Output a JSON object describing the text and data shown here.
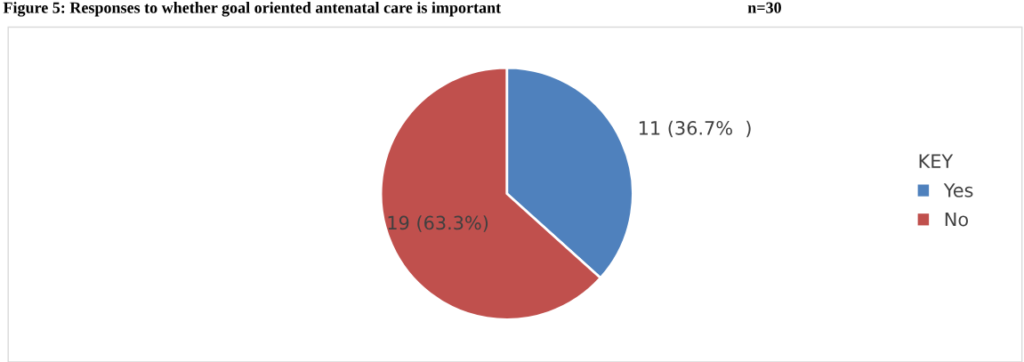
{
  "chart_data": {
    "type": "pie",
    "title": "Figure 5: Responses to whether goal oriented antenatal care is important",
    "subtitle": "n=30",
    "categories": [
      "Yes",
      "No"
    ],
    "values": [
      11,
      19
    ],
    "colors": [
      "#4f81bd",
      "#c0504d"
    ],
    "value_labels": [
      "11 (36.7%  )",
      "19 (63.3%)"
    ],
    "legend": "right",
    "legend_title": "KEY"
  }
}
